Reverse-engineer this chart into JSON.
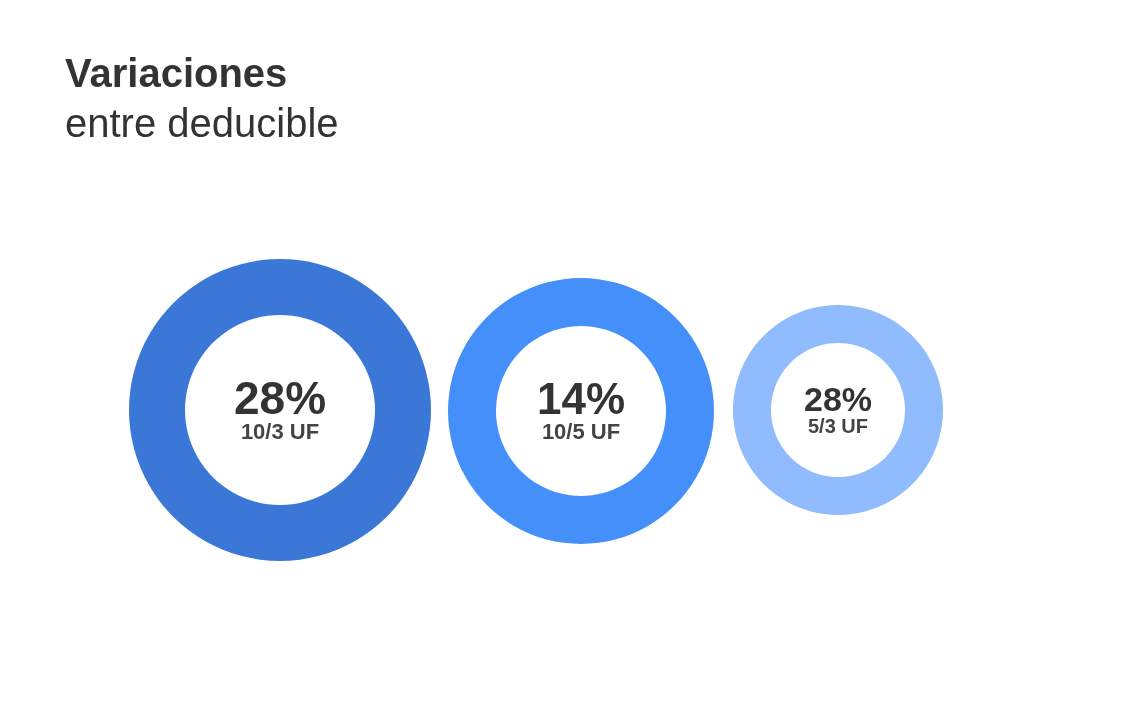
{
  "chart_data": {
    "type": "other",
    "title": "Variaciones",
    "subtitle": "entre deducible",
    "categories": [
      "10/3 UF",
      "10/5 UF",
      "5/3 UF"
    ],
    "values": [
      28,
      14,
      28
    ],
    "value_labels": [
      "28%",
      "14%",
      "28%"
    ],
    "colors": [
      "#3a77d7",
      "#458ffb",
      "#90bbfc"
    ]
  }
}
